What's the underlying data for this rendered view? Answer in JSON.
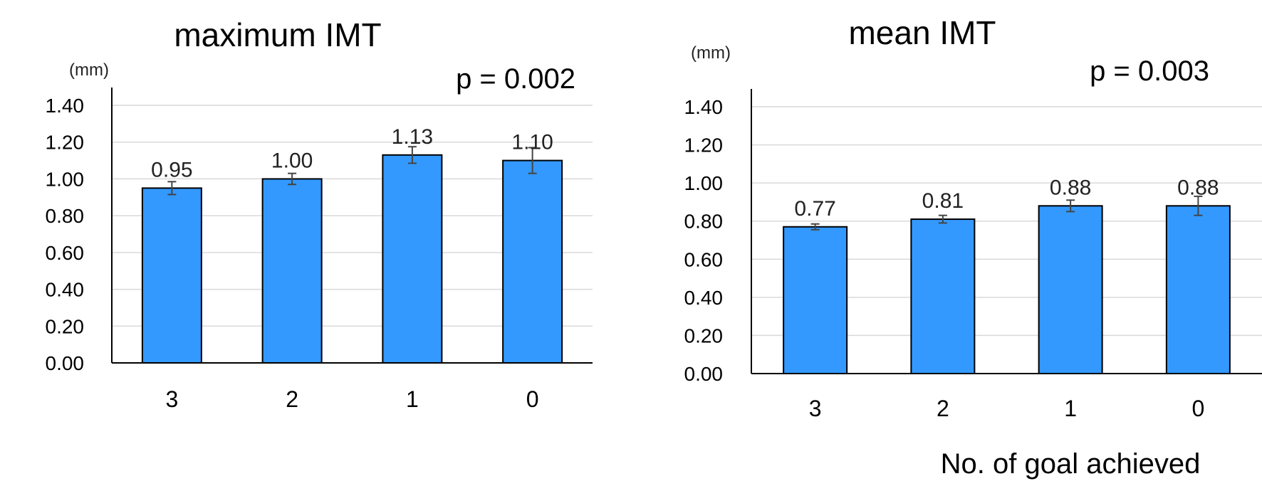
{
  "chart_data": [
    {
      "type": "bar",
      "title": "maximum IMT",
      "unit_label": "(mm)",
      "annotation": "p = 0.002",
      "categories": [
        "3",
        "2",
        "1",
        "0"
      ],
      "values": [
        0.95,
        1.0,
        1.13,
        1.1
      ],
      "value_labels": [
        "0.95",
        "1.00",
        "1.13",
        "1.10"
      ],
      "error": [
        0.035,
        0.03,
        0.045,
        0.07
      ],
      "y_ticks": [
        "0.00",
        "0.20",
        "0.40",
        "0.60",
        "0.80",
        "1.00",
        "1.20",
        "1.40"
      ],
      "ylim": [
        0,
        1.4
      ],
      "xlabel": "",
      "grid": true,
      "bar_color": "#3399ff"
    },
    {
      "type": "bar",
      "title": "mean IMT",
      "unit_label": "(mm)",
      "annotation": "p = 0.003",
      "categories": [
        "3",
        "2",
        "1",
        "0"
      ],
      "values": [
        0.77,
        0.81,
        0.88,
        0.88
      ],
      "value_labels": [
        "0.77",
        "0.81",
        "0.88",
        "0.88"
      ],
      "error": [
        0.015,
        0.02,
        0.03,
        0.05
      ],
      "y_ticks": [
        "0.00",
        "0.20",
        "0.40",
        "0.60",
        "0.80",
        "1.00",
        "1.20",
        "1.40"
      ],
      "ylim": [
        0,
        1.4
      ],
      "xlabel": "No. of goal achieved",
      "grid": true,
      "bar_color": "#3399ff"
    }
  ]
}
